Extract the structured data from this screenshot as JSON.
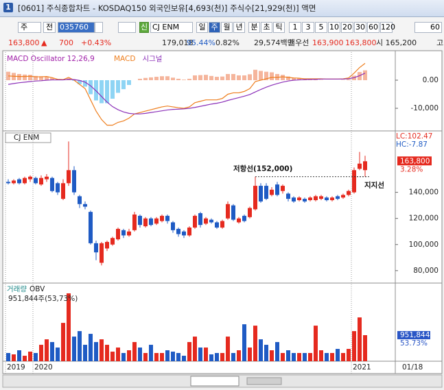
{
  "window": {
    "title": "[0601] 주식종합차트 - KOSDAQ150 외국인보유[4,693(천)] 주식수[21,929(천)] 액면",
    "number": "1"
  },
  "toolbar": {
    "chart_kind": "주",
    "scope": "전",
    "code": "035760",
    "badge": "신",
    "name": "CJ ENM",
    "periods": [
      "일",
      "주",
      "월",
      "년"
    ],
    "selected_period": 1,
    "units": [
      "분",
      "초",
      "틱"
    ],
    "intervals": [
      "1",
      "3",
      "5",
      "10",
      "20",
      "30",
      "60",
      "120"
    ],
    "count": "60"
  },
  "quote": {
    "price": "163,800",
    "arrow": "▲",
    "change": "700",
    "change_rate": "+0.43%",
    "volume": "179,018",
    "ratio1": "95.44%",
    "ratio2": "0.82%",
    "amount": "29,574백만",
    "best_label": "최우선",
    "ask": "163,900",
    "bid": "163,800",
    "open": "시 165,200",
    "high_label": "고"
  },
  "chart_data": [
    {
      "type": "macd",
      "title": "MACD Oscillator 12,26,9",
      "series": [
        {
          "name": "MACD",
          "color": "#ee7d1c",
          "values": [
            1500,
            1400,
            1300,
            1300,
            1400,
            1200,
            1200,
            1300,
            900,
            300,
            200,
            1000,
            0,
            -1500,
            -3000,
            -7000,
            -11000,
            -14000,
            -16000,
            -16000,
            -15000,
            -14500,
            -13500,
            -12000,
            -11500,
            -11000,
            -10500,
            -10000,
            -9500,
            -9200,
            -9500,
            -9800,
            -10000,
            -9500,
            -8000,
            -7500,
            -7000,
            -7000,
            -7000,
            -6500,
            -5000,
            -4500,
            -4500,
            -4000,
            -3000,
            -500,
            0,
            500,
            1000,
            1000,
            1200,
            1000,
            800,
            700,
            500,
            500,
            500,
            500,
            400,
            400,
            400,
            500,
            800,
            2500,
            4500,
            6000
          ]
        },
        {
          "name": "시그널",
          "color": "#8b2fb8",
          "values": [
            -1500,
            -1200,
            -900,
            -700,
            -500,
            -300,
            -200,
            0,
            100,
            100,
            100,
            300,
            200,
            -100,
            -700,
            -2000,
            -3800,
            -5800,
            -7800,
            -9400,
            -10500,
            -11300,
            -11800,
            -12000,
            -12000,
            -11800,
            -11500,
            -11200,
            -10900,
            -10600,
            -10400,
            -10300,
            -10200,
            -10000,
            -9700,
            -9300,
            -8900,
            -8500,
            -8200,
            -7800,
            -7200,
            -6700,
            -6200,
            -5700,
            -5100,
            -4200,
            -3300,
            -2500,
            -1800,
            -1200,
            -700,
            -300,
            0,
            100,
            200,
            300,
            300,
            400,
            400,
            400,
            400,
            400,
            500,
            900,
            1600,
            2500
          ]
        }
      ],
      "oscillator": {
        "color_up": "#f5b59c",
        "color_down": "#8ed4f4",
        "values": [
          3000,
          2600,
          2200,
          2000,
          1900,
          1500,
          1400,
          1300,
          800,
          200,
          100,
          700,
          -200,
          -1400,
          -2300,
          -5000,
          -7200,
          -8200,
          -8200,
          -6600,
          -4500,
          -3200,
          -1700,
          0,
          500,
          800,
          1000,
          1200,
          1400,
          1400,
          900,
          500,
          200,
          500,
          1700,
          1800,
          1900,
          1500,
          1200,
          1300,
          2200,
          2200,
          1700,
          1700,
          2100,
          3700,
          3300,
          3000,
          2800,
          2200,
          1900,
          1300,
          800,
          600,
          300,
          200,
          200,
          100,
          0,
          0,
          0,
          100,
          300,
          1600,
          2900,
          3500
        ]
      },
      "title_color": "#a01fa8",
      "ylim": [
        -17800,
        9500
      ],
      "yticks": [
        {
          "value": 0,
          "label": "0.00"
        },
        {
          "value": -10000,
          "label": "-10,000"
        }
      ]
    },
    {
      "type": "candlestick",
      "title": "CJ ENM",
      "colors": {
        "up": "#e52a1f",
        "down": "#1f5bc4"
      },
      "open": [
        148000,
        147000,
        150000,
        147000,
        150000,
        151000,
        146000,
        150000,
        151000,
        147000,
        135000,
        147000,
        157000,
        137000,
        131000,
        125000,
        101000,
        86000,
        97000,
        100000,
        104000,
        111000,
        107000,
        111000,
        122000,
        114000,
        120000,
        116000,
        118000,
        122000,
        117000,
        112000,
        110000,
        107000,
        113000,
        124000,
        116000,
        119000,
        117000,
        113000,
        120000,
        130000,
        117000,
        122000,
        121000,
        127000,
        145000,
        145000,
        138000,
        146000,
        141000,
        139000,
        136000,
        134000,
        135000,
        134000,
        134000,
        135000,
        136000,
        134000,
        137000,
        136000,
        138000,
        140000,
        158000,
        157000
      ],
      "high": [
        150000,
        150000,
        151000,
        152000,
        153000,
        152000,
        153000,
        154000,
        152000,
        148000,
        150000,
        179000,
        160000,
        138000,
        133000,
        126000,
        103000,
        102000,
        103000,
        106000,
        113000,
        112000,
        112000,
        125000,
        123000,
        121000,
        121000,
        121000,
        123000,
        123000,
        118000,
        113000,
        111000,
        114000,
        123000,
        125000,
        121000,
        120000,
        118000,
        119000,
        133000,
        131000,
        121000,
        123000,
        129000,
        152000,
        147000,
        147000,
        144000,
        148000,
        146000,
        140000,
        137000,
        137000,
        136000,
        137000,
        138000,
        138000,
        137000,
        137000,
        138000,
        139000,
        142000,
        159000,
        171000,
        168000
      ],
      "low": [
        146000,
        146000,
        146000,
        146000,
        148000,
        146000,
        145000,
        148000,
        140000,
        138000,
        134000,
        145000,
        138000,
        128000,
        127000,
        100000,
        88000,
        84000,
        95000,
        99000,
        103000,
        105000,
        106000,
        110000,
        113000,
        113000,
        114000,
        115000,
        117000,
        116000,
        109000,
        106000,
        105000,
        106000,
        112000,
        113000,
        115000,
        116000,
        112000,
        112000,
        119000,
        118000,
        116000,
        117000,
        120000,
        126000,
        132000,
        134000,
        137000,
        137000,
        139000,
        133000,
        132000,
        133000,
        132000,
        133000,
        133000,
        134000,
        133000,
        133000,
        134000,
        135000,
        137000,
        139000,
        157000,
        152000
      ],
      "close": [
        147000,
        149000,
        147000,
        151000,
        152000,
        147000,
        151000,
        152000,
        141000,
        140000,
        147000,
        157000,
        140000,
        131000,
        129000,
        101000,
        94000,
        101000,
        102000,
        105000,
        112000,
        107000,
        110000,
        123000,
        115000,
        120000,
        115000,
        120000,
        122000,
        118000,
        111000,
        108000,
        107000,
        113000,
        122000,
        115000,
        120000,
        117000,
        113000,
        118000,
        131000,
        119000,
        120000,
        118000,
        128000,
        145000,
        133000,
        135000,
        142000,
        138000,
        145000,
        135000,
        133000,
        136000,
        133000,
        136000,
        137000,
        137000,
        134000,
        136000,
        135000,
        138000,
        141000,
        157000,
        162000,
        163800
      ],
      "lc_label": "LC:102.47",
      "hc_label": "HC:-7.87",
      "last_price_label": "163,800",
      "change_label": "3.28%",
      "resistance": {
        "label": "저항선(152,000)",
        "value": 152000
      },
      "support": {
        "label": "지지선",
        "value": 152000
      },
      "ylim": [
        71000,
        186000
      ],
      "yticks": [
        {
          "value": 80000,
          "label": "80,000"
        },
        {
          "value": 100000,
          "label": "100,000"
        },
        {
          "value": 120000,
          "label": "120,000"
        },
        {
          "value": 140000,
          "label": "140,000"
        }
      ]
    },
    {
      "type": "bar",
      "title": "거래량",
      "subtitle": "OBV",
      "legend_value": "951,844주(53,73%)",
      "colors": {
        "up": "#e52a1f",
        "down": "#1f5bc4"
      },
      "values": [
        300000,
        250000,
        400000,
        200000,
        350000,
        300000,
        600000,
        800000,
        700000,
        500000,
        1400000,
        2480000,
        900000,
        1100000,
        600000,
        1000000,
        700000,
        800000,
        600000,
        350000,
        500000,
        300000,
        400000,
        700000,
        500000,
        300000,
        600000,
        300000,
        300000,
        400000,
        350000,
        300000,
        200000,
        700000,
        900000,
        500000,
        500000,
        250000,
        300000,
        300000,
        900000,
        300000,
        400000,
        1350000,
        500000,
        1300000,
        800000,
        600000,
        400000,
        700000,
        300000,
        400000,
        300000,
        300000,
        300000,
        300000,
        1300000,
        400000,
        300000,
        300000,
        450000,
        300000,
        450000,
        1100000,
        1600000,
        951844
      ],
      "categories": [
        "2019",
        null,
        null,
        null,
        null,
        "2020",
        null,
        null,
        null,
        null,
        null,
        null,
        null,
        null,
        null,
        null,
        null,
        null,
        null,
        null,
        null,
        null,
        null,
        null,
        null,
        null,
        null,
        null,
        null,
        null,
        null,
        null,
        null,
        null,
        null,
        null,
        null,
        null,
        null,
        null,
        null,
        null,
        null,
        null,
        null,
        null,
        null,
        null,
        null,
        null,
        null,
        null,
        null,
        null,
        null,
        null,
        null,
        null,
        null,
        null,
        null,
        null,
        null,
        "2021",
        null,
        null
      ],
      "last_date": "01/18",
      "last_label": "951,844",
      "last_ratio": "53.73%",
      "ylim": [
        0,
        2730000
      ]
    }
  ]
}
